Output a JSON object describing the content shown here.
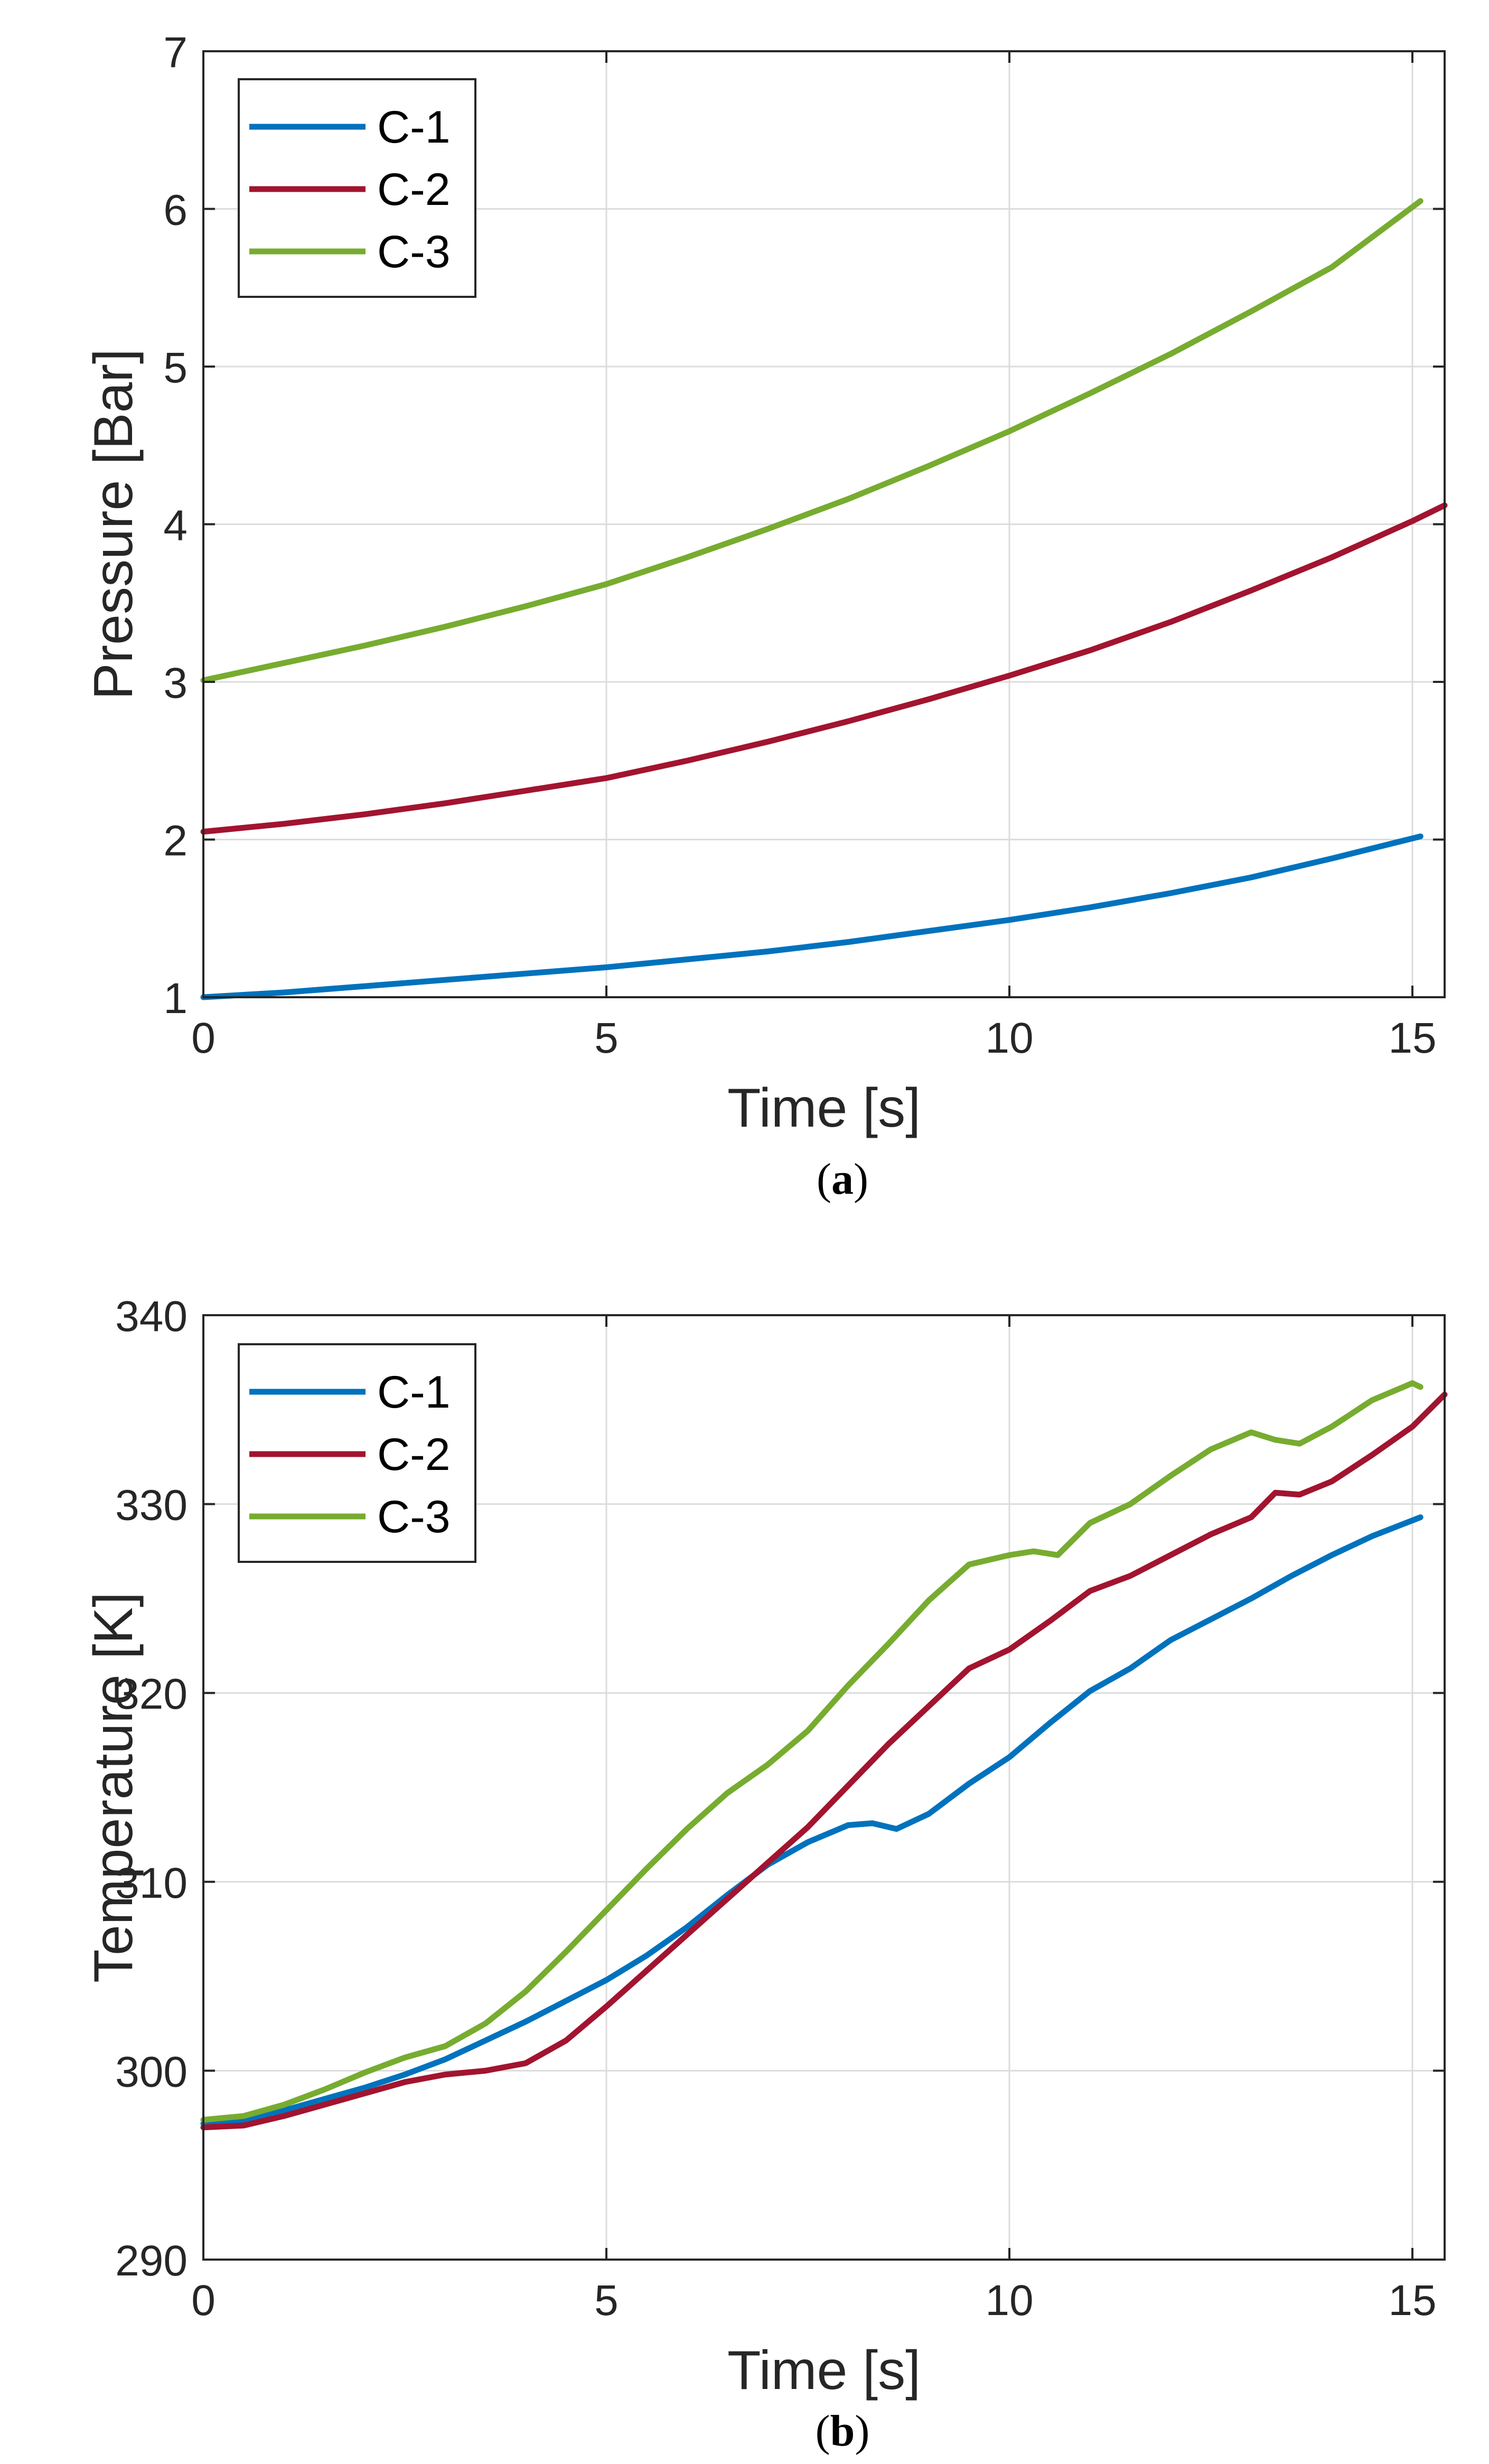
{
  "chart_data": [
    {
      "type": "line",
      "panel": "a",
      "caption": {
        "open": "(",
        "letter": "a",
        "close": ")"
      },
      "xlabel": "Time [s]",
      "ylabel": "Pressure [Bar]",
      "xlim": [
        0,
        15.4
      ],
      "ylim": [
        1,
        7
      ],
      "xticks": [
        "0",
        "5",
        "10",
        "15"
      ],
      "yticks": [
        "1",
        "2",
        "3",
        "4",
        "5",
        "6",
        "7"
      ],
      "grid": true,
      "legend_position": "top-left",
      "series": [
        {
          "name": "C-1",
          "color": "#0072BD",
          "x": [
            0,
            1,
            2,
            3,
            4,
            5,
            6,
            7,
            8,
            9,
            10,
            11,
            12,
            13,
            14,
            15.1
          ],
          "y": [
            1.0,
            1.03,
            1.07,
            1.11,
            1.15,
            1.19,
            1.24,
            1.29,
            1.35,
            1.42,
            1.49,
            1.57,
            1.66,
            1.76,
            1.88,
            2.02
          ]
        },
        {
          "name": "C-2",
          "color": "#A2142F",
          "x": [
            0,
            1,
            2,
            3,
            4,
            5,
            6,
            7,
            8,
            9,
            10,
            11,
            12,
            13,
            14,
            15,
            15.4
          ],
          "y": [
            2.05,
            2.1,
            2.16,
            2.23,
            2.31,
            2.39,
            2.5,
            2.62,
            2.75,
            2.89,
            3.04,
            3.2,
            3.38,
            3.58,
            3.79,
            4.02,
            4.12
          ]
        },
        {
          "name": "C-3",
          "color": "#77AC30",
          "x": [
            0,
            1,
            2,
            3,
            4,
            5,
            6,
            7,
            8,
            9,
            10,
            11,
            12,
            13,
            14,
            15.1
          ],
          "y": [
            3.01,
            3.12,
            3.23,
            3.35,
            3.48,
            3.62,
            3.79,
            3.97,
            4.16,
            4.37,
            4.59,
            4.83,
            5.08,
            5.35,
            5.63,
            6.05
          ]
        }
      ]
    },
    {
      "type": "line",
      "panel": "b",
      "caption": {
        "open": "(",
        "letter": "b",
        "close": ")"
      },
      "xlabel": "Time [s]",
      "ylabel": "Temperature [K]",
      "xlim": [
        0,
        15.4
      ],
      "ylim": [
        290,
        340
      ],
      "xticks": [
        "0",
        "5",
        "10",
        "15"
      ],
      "yticks": [
        "290",
        "300",
        "310",
        "320",
        "330",
        "340"
      ],
      "grid": true,
      "legend_position": "top-left",
      "series": [
        {
          "name": "C-1",
          "color": "#0072BD",
          "x": [
            0,
            0.5,
            1,
            1.5,
            2,
            2.5,
            3,
            3.5,
            4,
            4.5,
            5,
            5.5,
            6,
            6.5,
            7,
            7.5,
            8,
            8.3,
            8.6,
            9,
            9.5,
            10,
            10.5,
            11,
            11.5,
            12,
            12.5,
            13,
            13.5,
            14,
            14.5,
            15.1
          ],
          "y": [
            297.2,
            297.4,
            297.9,
            298.5,
            299.1,
            299.8,
            300.6,
            301.6,
            302.6,
            303.7,
            304.8,
            306.1,
            307.6,
            309.3,
            310.9,
            312.1,
            313.0,
            313.1,
            312.8,
            313.6,
            315.2,
            316.6,
            318.4,
            320.1,
            321.3,
            322.8,
            323.9,
            325.0,
            326.2,
            327.3,
            328.3,
            329.3
          ]
        },
        {
          "name": "C-2",
          "color": "#A2142F",
          "x": [
            0,
            0.5,
            1,
            1.5,
            2,
            2.5,
            3,
            3.5,
            4,
            4.5,
            5,
            5.5,
            6,
            6.5,
            7,
            7.5,
            8,
            8.5,
            9,
            9.5,
            10,
            10.5,
            11,
            11.5,
            12,
            12.5,
            13,
            13.3,
            13.6,
            14,
            14.5,
            15,
            15.4
          ],
          "y": [
            297.0,
            297.1,
            297.6,
            298.2,
            298.8,
            299.4,
            299.8,
            300.0,
            300.4,
            301.6,
            303.4,
            305.3,
            307.2,
            309.1,
            311.0,
            312.9,
            315.1,
            317.3,
            319.3,
            321.3,
            322.3,
            323.8,
            325.4,
            326.2,
            327.3,
            328.4,
            329.3,
            330.6,
            330.5,
            331.2,
            332.6,
            334.1,
            335.8
          ]
        },
        {
          "name": "C-3",
          "color": "#77AC30",
          "x": [
            0,
            0.5,
            1,
            1.5,
            2,
            2.5,
            3,
            3.5,
            4,
            4.5,
            5,
            5.5,
            6,
            6.5,
            7,
            7.5,
            8,
            8.5,
            9,
            9.5,
            10,
            10.3,
            10.6,
            11,
            11.5,
            12,
            12.5,
            13,
            13.3,
            13.6,
            14,
            14.5,
            15,
            15.1
          ],
          "y": [
            297.4,
            297.6,
            298.2,
            299.0,
            299.9,
            300.7,
            301.3,
            302.5,
            304.2,
            306.3,
            308.5,
            310.7,
            312.8,
            314.7,
            316.2,
            318.0,
            320.4,
            322.6,
            324.9,
            326.8,
            327.3,
            327.5,
            327.3,
            329.0,
            330.0,
            331.5,
            332.9,
            333.8,
            333.4,
            333.2,
            334.1,
            335.5,
            336.4,
            336.2
          ]
        }
      ]
    }
  ]
}
